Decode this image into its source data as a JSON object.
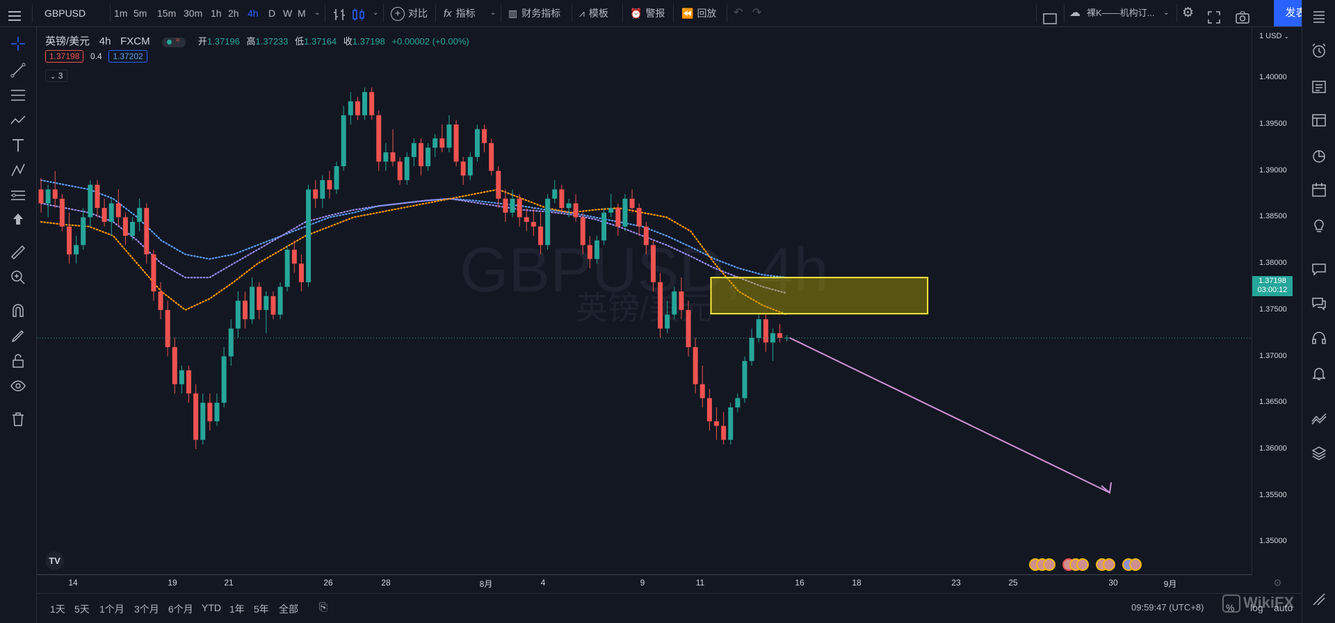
{
  "colors": {
    "up": "#26a69a",
    "down": "#ef5350",
    "ma_orange": "#ff9800",
    "ma_blue": "#5b9cf6",
    "ma_purple": "#9c8cf0",
    "zone": "#ffeb3b",
    "arrow": "#ce93d8",
    "accent": "#2962ff"
  },
  "toolbar": {
    "symbol": "GBPUSD",
    "intervals": [
      "1m",
      "5m",
      "15m",
      "30m",
      "1h",
      "2h",
      "4h",
      "D",
      "W",
      "M"
    ],
    "active_interval": "4h",
    "compare": "对比",
    "indicators": "指标",
    "financials": "财务指标",
    "templates": "模板",
    "alert": "警报",
    "replay": "回放",
    "layout_name": "裸K——机构订...",
    "publish": "发表"
  },
  "legend": {
    "title": "英镑/美元",
    "interval": "4h",
    "exchange": "FXCM",
    "open_label": "开",
    "open": "1.37196",
    "high_label": "高",
    "high": "1.37233",
    "low_label": "低",
    "low": "1.37164",
    "close_label": "收",
    "close": "1.37198",
    "change": "+0.00002 (+0.00%)",
    "bid": "1.37198",
    "spread": "0.4",
    "ask": "1.37202",
    "collapse_count": "3"
  },
  "watermark": {
    "line1": "GBPUSD, 4h",
    "line2": "英镑/美元"
  },
  "price_axis": {
    "currency": "1 USD",
    "ticks": [
      "1.40000",
      "1.39500",
      "1.39000",
      "1.38500",
      "1.38000",
      "1.37500",
      "1.37000",
      "1.36500",
      "1.36000",
      "1.35500",
      "1.35000"
    ],
    "last_price": "1.37198",
    "countdown": "03:00:12"
  },
  "time_axis": {
    "labels": [
      "14",
      "19",
      "21",
      "26",
      "28",
      "8月",
      "4",
      "9",
      "11",
      "16",
      "18",
      "23",
      "25",
      "30",
      "9月"
    ]
  },
  "bottom": {
    "ranges": [
      "1天",
      "5天",
      "1个月",
      "3个月",
      "6个月",
      "YTD",
      "1年",
      "5年",
      "全部"
    ],
    "clock": "09:59:47 (UTC+8)",
    "pct": "%",
    "log": "log",
    "auto": "auto",
    "watermark": "WikiFX"
  },
  "chart_data": {
    "type": "candlestick",
    "symbol": "GBPUSD",
    "interval": "4h",
    "ylim": [
      1.3465,
      1.4055
    ],
    "candles": [
      [
        1.388,
        1.3892,
        1.3855,
        1.3865
      ],
      [
        1.3865,
        1.3885,
        1.385,
        1.388
      ],
      [
        1.388,
        1.39,
        1.386,
        1.387
      ],
      [
        1.387,
        1.3875,
        1.3835,
        1.384
      ],
      [
        1.384,
        1.3855,
        1.38,
        1.381
      ],
      [
        1.381,
        1.383,
        1.38,
        1.382
      ],
      [
        1.382,
        1.386,
        1.3815,
        1.385
      ],
      [
        1.385,
        1.389,
        1.384,
        1.3885
      ],
      [
        1.3885,
        1.389,
        1.385,
        1.386
      ],
      [
        1.386,
        1.387,
        1.384,
        1.3845
      ],
      [
        1.3845,
        1.387,
        1.383,
        1.3865
      ],
      [
        1.3865,
        1.388,
        1.384,
        1.385
      ],
      [
        1.385,
        1.3855,
        1.382,
        1.383
      ],
      [
        1.383,
        1.385,
        1.3825,
        1.3845
      ],
      [
        1.3845,
        1.387,
        1.3835,
        1.386
      ],
      [
        1.386,
        1.3865,
        1.38,
        1.381
      ],
      [
        1.381,
        1.3815,
        1.376,
        1.377
      ],
      [
        1.377,
        1.378,
        1.374,
        1.375
      ],
      [
        1.375,
        1.376,
        1.37,
        1.371
      ],
      [
        1.371,
        1.372,
        1.366,
        1.367
      ],
      [
        1.367,
        1.369,
        1.366,
        1.3685
      ],
      [
        1.3685,
        1.369,
        1.365,
        1.366
      ],
      [
        1.366,
        1.367,
        1.36,
        1.361
      ],
      [
        1.361,
        1.366,
        1.3605,
        1.365
      ],
      [
        1.365,
        1.366,
        1.362,
        1.363
      ],
      [
        1.363,
        1.366,
        1.3625,
        1.365
      ],
      [
        1.365,
        1.371,
        1.3645,
        1.37
      ],
      [
        1.37,
        1.374,
        1.369,
        1.373
      ],
      [
        1.373,
        1.377,
        1.372,
        1.376
      ],
      [
        1.376,
        1.377,
        1.373,
        1.374
      ],
      [
        1.374,
        1.3785,
        1.3735,
        1.3775
      ],
      [
        1.3775,
        1.378,
        1.374,
        1.375
      ],
      [
        1.375,
        1.377,
        1.3725,
        1.3765
      ],
      [
        1.3765,
        1.377,
        1.374,
        1.3745
      ],
      [
        1.3745,
        1.378,
        1.374,
        1.3775
      ],
      [
        1.3775,
        1.382,
        1.377,
        1.3815
      ],
      [
        1.3815,
        1.3825,
        1.379,
        1.38
      ],
      [
        1.38,
        1.381,
        1.377,
        1.378
      ],
      [
        1.378,
        1.3885,
        1.3775,
        1.388
      ],
      [
        1.388,
        1.389,
        1.386,
        1.387
      ],
      [
        1.387,
        1.3895,
        1.386,
        1.389
      ],
      [
        1.389,
        1.39,
        1.387,
        1.388
      ],
      [
        1.388,
        1.391,
        1.3875,
        1.3905
      ],
      [
        1.3905,
        1.397,
        1.39,
        1.396
      ],
      [
        1.396,
        1.3985,
        1.395,
        1.3975
      ],
      [
        1.3975,
        1.398,
        1.3955,
        1.396
      ],
      [
        1.396,
        1.399,
        1.3955,
        1.3985
      ],
      [
        1.3985,
        1.399,
        1.3955,
        1.396
      ],
      [
        1.396,
        1.3965,
        1.39,
        1.391
      ],
      [
        1.391,
        1.393,
        1.39,
        1.392
      ],
      [
        1.392,
        1.3945,
        1.3905,
        1.391
      ],
      [
        1.391,
        1.3915,
        1.3885,
        1.389
      ],
      [
        1.389,
        1.392,
        1.3885,
        1.3915
      ],
      [
        1.3915,
        1.3935,
        1.3905,
        1.393
      ],
      [
        1.393,
        1.3935,
        1.3895,
        1.3905
      ],
      [
        1.3905,
        1.393,
        1.39,
        1.3925
      ],
      [
        1.3925,
        1.394,
        1.3915,
        1.3935
      ],
      [
        1.3935,
        1.395,
        1.392,
        1.3925
      ],
      [
        1.3925,
        1.396,
        1.392,
        1.395
      ],
      [
        1.395,
        1.3955,
        1.3905,
        1.391
      ],
      [
        1.391,
        1.3915,
        1.3885,
        1.3895
      ],
      [
        1.3895,
        1.392,
        1.389,
        1.3915
      ],
      [
        1.3915,
        1.395,
        1.391,
        1.3945
      ],
      [
        1.3945,
        1.395,
        1.392,
        1.393
      ],
      [
        1.393,
        1.3935,
        1.3895,
        1.39
      ],
      [
        1.39,
        1.3905,
        1.386,
        1.387
      ],
      [
        1.387,
        1.388,
        1.3845,
        1.3855
      ],
      [
        1.3855,
        1.388,
        1.385,
        1.387
      ],
      [
        1.387,
        1.3875,
        1.384,
        1.385
      ],
      [
        1.385,
        1.386,
        1.3835,
        1.3845
      ],
      [
        1.3845,
        1.386,
        1.383,
        1.384
      ],
      [
        1.384,
        1.3855,
        1.381,
        1.382
      ],
      [
        1.382,
        1.3875,
        1.3815,
        1.387
      ],
      [
        1.387,
        1.389,
        1.3865,
        1.388
      ],
      [
        1.388,
        1.3885,
        1.3855,
        1.386
      ],
      [
        1.386,
        1.387,
        1.385,
        1.3865
      ],
      [
        1.3865,
        1.3875,
        1.3845,
        1.385
      ],
      [
        1.385,
        1.3855,
        1.381,
        1.382
      ],
      [
        1.382,
        1.383,
        1.3795,
        1.3805
      ],
      [
        1.3805,
        1.383,
        1.38,
        1.3825
      ],
      [
        1.3825,
        1.386,
        1.382,
        1.3855
      ],
      [
        1.3855,
        1.3875,
        1.385,
        1.386
      ],
      [
        1.386,
        1.3865,
        1.383,
        1.384
      ],
      [
        1.384,
        1.3875,
        1.3835,
        1.387
      ],
      [
        1.387,
        1.388,
        1.3855,
        1.386
      ],
      [
        1.386,
        1.3865,
        1.383,
        1.384
      ],
      [
        1.384,
        1.3845,
        1.381,
        1.382
      ],
      [
        1.382,
        1.3825,
        1.377,
        1.378
      ],
      [
        1.378,
        1.379,
        1.372,
        1.373
      ],
      [
        1.373,
        1.376,
        1.3725,
        1.3745
      ],
      [
        1.3745,
        1.3775,
        1.374,
        1.377
      ],
      [
        1.377,
        1.3785,
        1.374,
        1.375
      ],
      [
        1.375,
        1.376,
        1.37,
        1.371
      ],
      [
        1.371,
        1.372,
        1.366,
        1.367
      ],
      [
        1.367,
        1.369,
        1.3645,
        1.3655
      ],
      [
        1.3655,
        1.3665,
        1.362,
        1.363
      ],
      [
        1.363,
        1.3645,
        1.361,
        1.3625
      ],
      [
        1.3625,
        1.364,
        1.3605,
        1.361
      ],
      [
        1.361,
        1.365,
        1.3605,
        1.3645
      ],
      [
        1.3645,
        1.366,
        1.364,
        1.3655
      ],
      [
        1.3655,
        1.37,
        1.365,
        1.3695
      ],
      [
        1.3695,
        1.373,
        1.369,
        1.372
      ],
      [
        1.372,
        1.3745,
        1.3715,
        1.374
      ],
      [
        1.374,
        1.3745,
        1.3705,
        1.3715
      ],
      [
        1.3715,
        1.373,
        1.3695,
        1.3725
      ],
      [
        1.3725,
        1.3735,
        1.3715,
        1.372
      ],
      [
        1.372,
        1.3723,
        1.3716,
        1.372
      ]
    ],
    "ma_orange": [
      1.3845,
      1.3842,
      1.384,
      1.383,
      1.38,
      1.377,
      1.375,
      1.3762,
      1.378,
      1.38,
      1.3815,
      1.383,
      1.384,
      1.385,
      1.3855,
      1.386,
      1.3865,
      1.387,
      1.3875,
      1.388,
      1.387,
      1.386,
      1.3855,
      1.3858,
      1.386,
      1.3855,
      1.385,
      1.3835,
      1.38,
      1.377,
      1.3755,
      1.3745
    ],
    "ma_blue": [
      1.389,
      1.3885,
      1.388,
      1.387,
      1.385,
      1.3825,
      1.381,
      1.3805,
      1.381,
      1.382,
      1.383,
      1.384,
      1.385,
      1.3855,
      1.3862,
      1.3865,
      1.3868,
      1.387,
      1.3868,
      1.3865,
      1.3862,
      1.3858,
      1.3855,
      1.385,
      1.3845,
      1.384,
      1.383,
      1.3818,
      1.3805,
      1.3795,
      1.3788,
      1.3785
    ],
    "ma_purple": [
      1.3865,
      1.386,
      1.3855,
      1.3845,
      1.3825,
      1.38,
      1.3785,
      1.3785,
      1.38,
      1.3815,
      1.383,
      1.3845,
      1.3852,
      1.3858,
      1.3862,
      1.3865,
      1.3868,
      1.387,
      1.3866,
      1.3862,
      1.3858,
      1.3856,
      1.3853,
      1.3848,
      1.384,
      1.383,
      1.382,
      1.3808,
      1.3795,
      1.3785,
      1.3775,
      1.3768
    ],
    "zone": {
      "top": 1.3785,
      "bottom": 1.3746
    },
    "current_price": 1.37198
  }
}
